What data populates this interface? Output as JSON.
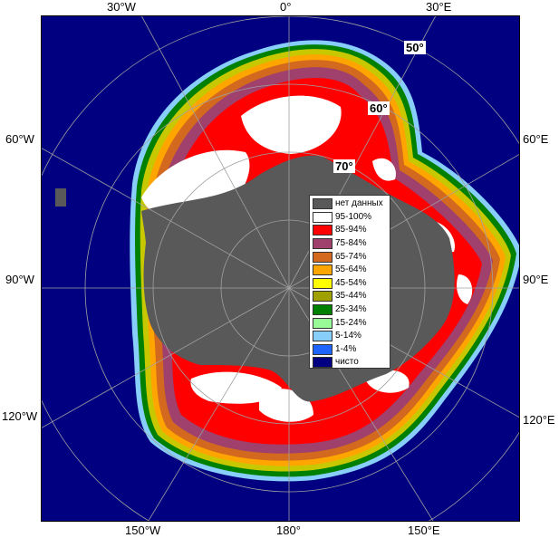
{
  "map": {
    "lon_labels_top": [
      "30°W",
      "0°",
      "30°E"
    ],
    "lon_labels_left": [
      "60°W",
      "90°W",
      "120°W"
    ],
    "lon_labels_right": [
      "60°E",
      "90°E",
      "120°E"
    ],
    "lon_labels_bottom": [
      "150°W",
      "180°",
      "150°E"
    ],
    "lat_labels": [
      "50°",
      "60°",
      "70°"
    ],
    "colors": {
      "ocean": "#000080",
      "land": "#595959",
      "grid": "#a0a0a0"
    }
  },
  "legend": {
    "items": [
      {
        "label": "нет данных",
        "color": "#595959"
      },
      {
        "label": "95-100%",
        "color": "#ffffff"
      },
      {
        "label": "85-94%",
        "color": "#ff0000"
      },
      {
        "label": "75-84%",
        "color": "#a0406c"
      },
      {
        "label": "65-74%",
        "color": "#d2691e"
      },
      {
        "label": "55-64%",
        "color": "#ffa500"
      },
      {
        "label": "45-54%",
        "color": "#ffff00"
      },
      {
        "label": "35-44%",
        "color": "#a0a000"
      },
      {
        "label": "25-34%",
        "color": "#008000"
      },
      {
        "label": "15-24%",
        "color": "#98fb98"
      },
      {
        "label": "5-14%",
        "color": "#87cefa"
      },
      {
        "label": "1-4%",
        "color": "#1e64ff"
      },
      {
        "label": "чисто",
        "color": "#000080"
      }
    ]
  }
}
